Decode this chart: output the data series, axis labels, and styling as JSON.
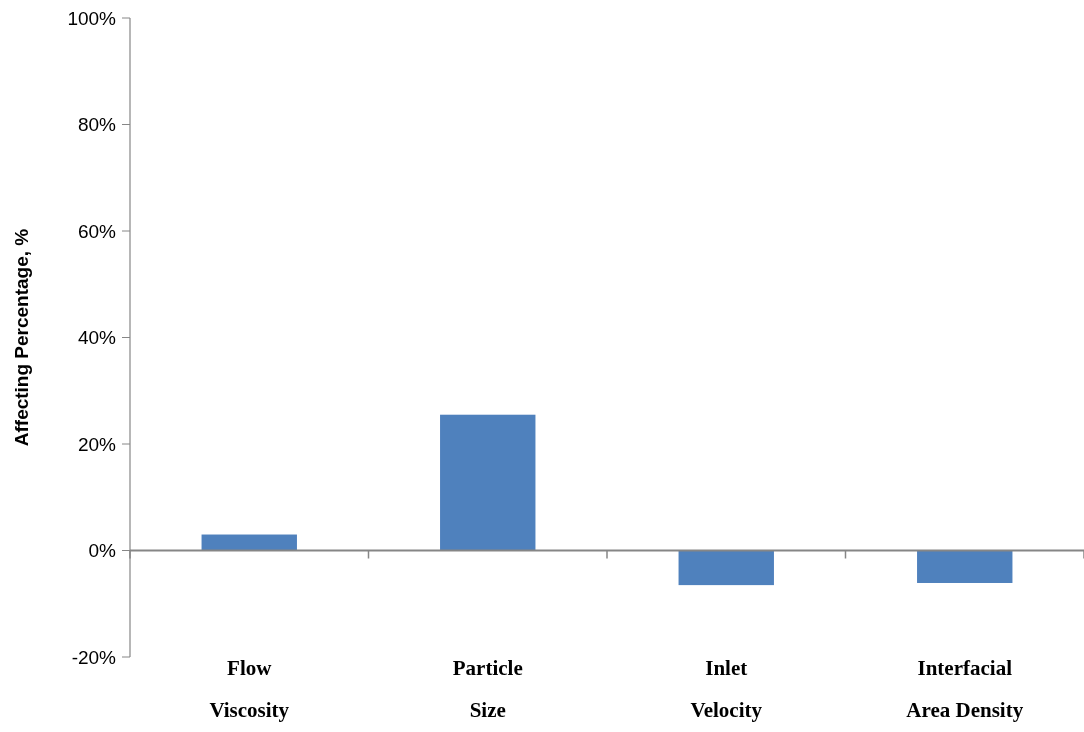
{
  "chart_data": {
    "type": "bar",
    "ylabel": "Affecting Percentage, %",
    "categories": [
      "Flow Viscosity",
      "Particle Size",
      "Inlet Velocity",
      "Interfacial Area Density"
    ],
    "values": [
      3.0,
      25.5,
      -6.5,
      -6.1
    ],
    "color": "#4f81bd",
    "ylim": [
      -20,
      100
    ],
    "yticks": [
      {
        "value": -20,
        "label": "-20%"
      },
      {
        "value": 0,
        "label": "0%"
      },
      {
        "value": 20,
        "label": "20%"
      },
      {
        "value": 40,
        "label": "40%"
      },
      {
        "value": 60,
        "label": "60%"
      },
      {
        "value": 80,
        "label": "80%"
      },
      {
        "value": 100,
        "label": "100%"
      }
    ]
  }
}
